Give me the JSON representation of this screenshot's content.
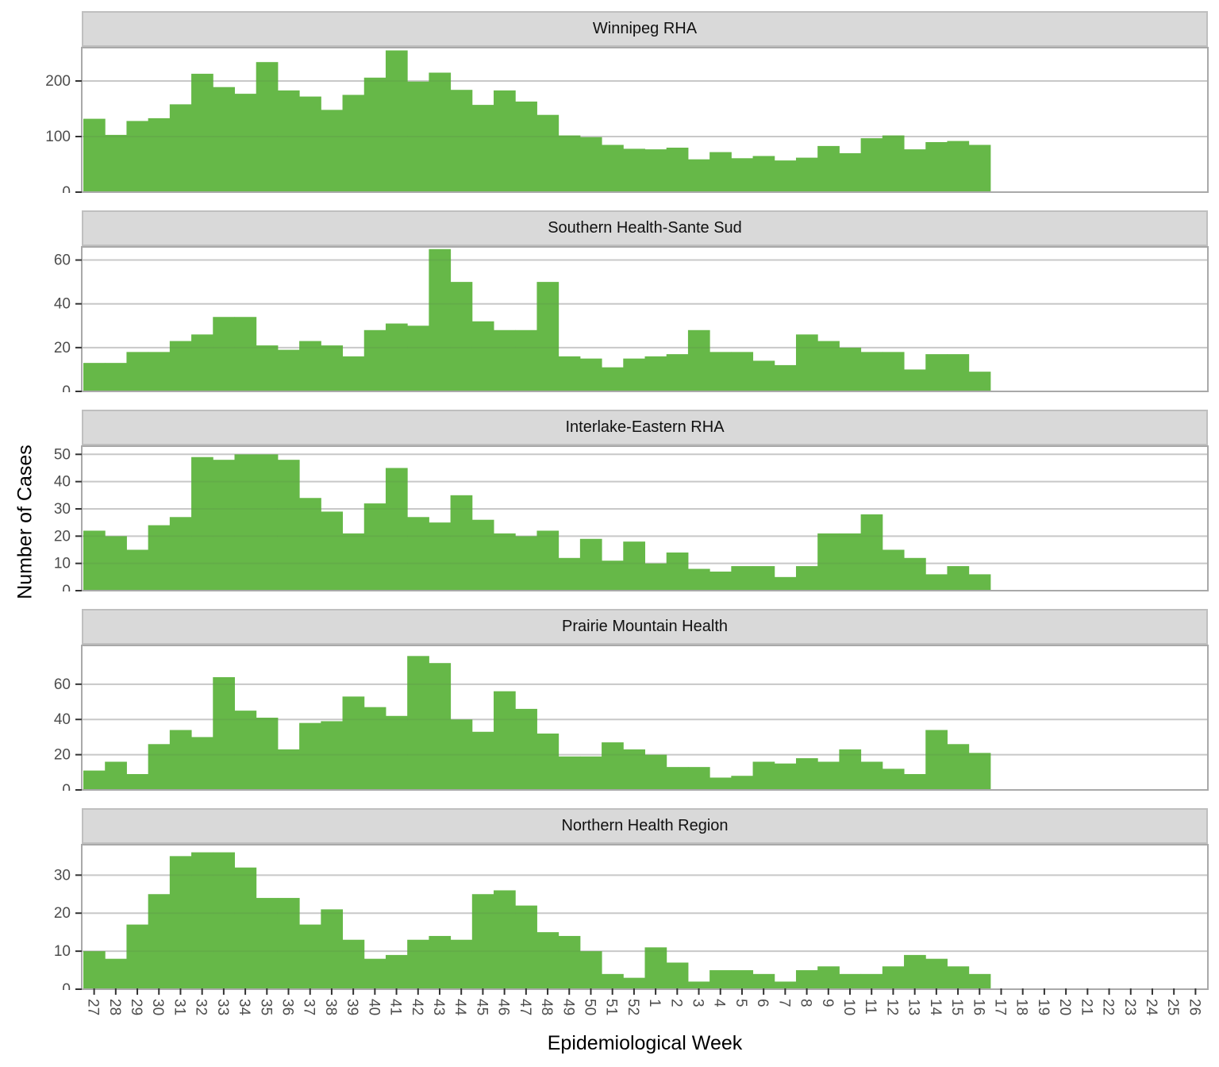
{
  "figure": {
    "y_axis_title": "Number of Cases",
    "x_axis_title": "Epidemiological Week",
    "colors": {
      "bar_fill": "#66B848",
      "strip_background": "#D9D9D9",
      "strip_border": "#BFBFBF",
      "panel_border": "#A9A9A9",
      "gridline": "#D6D6D6",
      "axis_text": "#4D4D4D",
      "tick_mark": "#333333",
      "title_text": "#000000",
      "panel_background": "#FFFFFF"
    }
  },
  "chart_data": {
    "type": "bar",
    "xlabel": "Epidemiological Week",
    "ylabel": "Number of Cases",
    "grid": "horizontal-major-only",
    "legend_position": "none",
    "categories": [
      "27",
      "28",
      "29",
      "30",
      "31",
      "32",
      "33",
      "34",
      "35",
      "36",
      "37",
      "38",
      "39",
      "40",
      "41",
      "42",
      "43",
      "44",
      "45",
      "46",
      "47",
      "48",
      "49",
      "50",
      "51",
      "52",
      "1",
      "2",
      "3",
      "4",
      "5",
      "6",
      "7",
      "8",
      "9",
      "10",
      "11",
      "12",
      "13",
      "14",
      "15",
      "16",
      "17",
      "18",
      "19",
      "20",
      "21",
      "22",
      "23",
      "24",
      "25",
      "26"
    ],
    "data_weeks": [
      "27",
      "28",
      "29",
      "30",
      "31",
      "32",
      "33",
      "34",
      "35",
      "36",
      "37",
      "38",
      "39",
      "40",
      "41",
      "42",
      "43",
      "44",
      "45",
      "46",
      "47",
      "48",
      "49",
      "50",
      "51",
      "52",
      "1",
      "2",
      "3",
      "4",
      "5",
      "6",
      "7",
      "8",
      "9",
      "10",
      "11",
      "12",
      "13",
      "14",
      "15",
      "16"
    ],
    "facets": [
      {
        "title": "Winnipeg RHA",
        "ylim": [
          0,
          260
        ],
        "yticks": [
          0,
          100,
          200
        ],
        "values": [
          132,
          103,
          128,
          133,
          158,
          213,
          189,
          177,
          234,
          183,
          172,
          148,
          175,
          206,
          255,
          199,
          215,
          184,
          157,
          183,
          163,
          139,
          102,
          99,
          85,
          78,
          77,
          80,
          59,
          72,
          61,
          65,
          57,
          62,
          83,
          70,
          97,
          102,
          77,
          90,
          92,
          85
        ]
      },
      {
        "title": "Southern Health-Sante Sud",
        "ylim": [
          0,
          66
        ],
        "yticks": [
          0,
          20,
          40,
          60
        ],
        "values": [
          13,
          13,
          18,
          18,
          23,
          26,
          34,
          34,
          21,
          19,
          23,
          21,
          16,
          28,
          31,
          30,
          65,
          50,
          32,
          28,
          28,
          50,
          16,
          15,
          11,
          15,
          16,
          17,
          28,
          18,
          18,
          14,
          12,
          26,
          23,
          20,
          18,
          18,
          10,
          17,
          17,
          9
        ]
      },
      {
        "title": "Interlake-Eastern RHA",
        "ylim": [
          0,
          53
        ],
        "yticks": [
          0,
          10,
          20,
          30,
          40,
          50
        ],
        "values": [
          22,
          20,
          15,
          24,
          27,
          49,
          48,
          50,
          50,
          48,
          34,
          29,
          21,
          32,
          45,
          27,
          25,
          35,
          26,
          21,
          20,
          22,
          12,
          19,
          11,
          18,
          10,
          14,
          8,
          7,
          9,
          9,
          5,
          9,
          21,
          21,
          28,
          15,
          12,
          6,
          9,
          6
        ]
      },
      {
        "title": "Prairie Mountain Health",
        "ylim": [
          0,
          82
        ],
        "yticks": [
          0,
          20,
          40,
          60
        ],
        "values": [
          11,
          16,
          9,
          26,
          34,
          30,
          64,
          45,
          41,
          23,
          38,
          39,
          53,
          47,
          42,
          76,
          72,
          40,
          33,
          56,
          46,
          32,
          19,
          19,
          27,
          23,
          20,
          13,
          13,
          7,
          8,
          16,
          15,
          18,
          16,
          23,
          16,
          12,
          9,
          34,
          26,
          21
        ]
      },
      {
        "title": "Northern Health Region",
        "ylim": [
          0,
          38
        ],
        "yticks": [
          0,
          10,
          20,
          30
        ],
        "values": [
          10,
          8,
          17,
          25,
          35,
          36,
          36,
          32,
          24,
          24,
          17,
          21,
          13,
          8,
          9,
          13,
          14,
          13,
          25,
          26,
          22,
          15,
          14,
          10,
          4,
          3,
          11,
          7,
          2,
          5,
          5,
          4,
          2,
          5,
          6,
          4,
          4,
          6,
          9,
          8,
          6,
          4
        ]
      }
    ]
  }
}
